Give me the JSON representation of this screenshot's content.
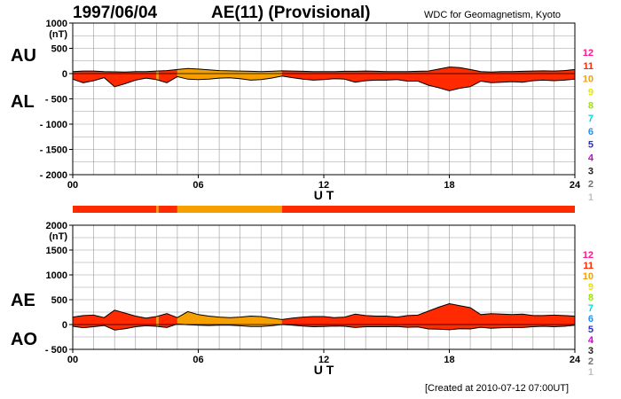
{
  "header": {
    "date": "1997/06/04",
    "title": "AE(11) (Provisional)",
    "org": "WDC for Geomagnetism, Kyoto",
    "created": "[Created at 2010-07-12 07:00UT]"
  },
  "colors": {
    "red": "#ff2a00",
    "orange": "#f5a000",
    "grid": "#999999"
  },
  "chart_data": [
    {
      "type": "area",
      "id": "au-al",
      "ylim": [
        -2000,
        1000
      ],
      "yticks": [
        1000,
        500,
        0,
        -500,
        -1000,
        -1500,
        -2000
      ],
      "ytick_labels": [
        "1000",
        "500",
        "0",
        "- 500",
        "- 1000",
        "- 1500",
        "- 2000"
      ],
      "unit": "(nT)",
      "upper_label": "AU",
      "lower_label": "AL",
      "xlim": [
        0,
        24
      ],
      "xticks": [
        0,
        6,
        12,
        18,
        24
      ],
      "xtick_labels": [
        "00",
        "06",
        "12",
        "18",
        "24"
      ],
      "xlabel": "U T",
      "series": [
        {
          "name": "AU",
          "x": [
            0,
            0.5,
            1,
            1.5,
            2,
            2.5,
            3,
            3.5,
            4,
            4.5,
            5,
            5.5,
            6,
            6.5,
            7,
            7.5,
            8,
            8.5,
            9,
            9.5,
            10,
            10.5,
            11,
            11.5,
            12,
            12.5,
            13,
            13.5,
            14,
            14.5,
            15,
            15.5,
            16,
            16.5,
            17,
            17.5,
            18,
            18.5,
            19,
            19.5,
            20,
            20.5,
            21,
            21.5,
            22,
            22.5,
            23,
            23.5,
            24
          ],
          "values": [
            40,
            50,
            50,
            40,
            35,
            30,
            40,
            40,
            50,
            60,
            80,
            100,
            90,
            75,
            60,
            55,
            50,
            45,
            40,
            45,
            55,
            50,
            45,
            40,
            40,
            40,
            45,
            45,
            50,
            45,
            40,
            40,
            40,
            45,
            50,
            90,
            130,
            120,
            80,
            40,
            30,
            40,
            40,
            45,
            50,
            55,
            50,
            60,
            80
          ]
        },
        {
          "name": "AL",
          "x": [
            0,
            0.5,
            1,
            1.5,
            2,
            2.5,
            3,
            3.5,
            4,
            4.5,
            5,
            5.5,
            6,
            6.5,
            7,
            7.5,
            8,
            8.5,
            9,
            9.5,
            10,
            10.5,
            11,
            11.5,
            12,
            12.5,
            13,
            13.5,
            14,
            14.5,
            15,
            15.5,
            16,
            16.5,
            17,
            17.5,
            18,
            18.5,
            19,
            19.5,
            20,
            20.5,
            21,
            21.5,
            22,
            22.5,
            23,
            23.5,
            24
          ],
          "values": [
            -110,
            -180,
            -140,
            -80,
            -260,
            -200,
            -130,
            -90,
            -120,
            -180,
            -60,
            -110,
            -120,
            -110,
            -90,
            -85,
            -100,
            -130,
            -120,
            -90,
            -50,
            -80,
            -110,
            -130,
            -120,
            -100,
            -110,
            -170,
            -140,
            -130,
            -130,
            -120,
            -150,
            -150,
            -230,
            -280,
            -340,
            -290,
            -260,
            -150,
            -180,
            -170,
            -160,
            -170,
            -140,
            -130,
            -140,
            -130,
            -110
          ]
        }
      ]
    },
    {
      "type": "area",
      "id": "ae-ao",
      "ylim": [
        -500,
        2000
      ],
      "yticks": [
        2000,
        1500,
        1000,
        500,
        0,
        -500
      ],
      "ytick_labels": [
        "2000",
        "1500",
        "1000",
        "500",
        "0",
        "- 500"
      ],
      "unit": "(nT)",
      "upper_label": "AE",
      "lower_label": "AO",
      "xlim": [
        0,
        24
      ],
      "xticks": [
        0,
        6,
        12,
        18,
        24
      ],
      "xtick_labels": [
        "00",
        "06",
        "12",
        "18",
        "24"
      ],
      "xlabel": "U T",
      "series": [
        {
          "name": "AE",
          "x": [
            0,
            0.5,
            1,
            1.5,
            2,
            2.5,
            3,
            3.5,
            4,
            4.5,
            5,
            5.5,
            6,
            6.5,
            7,
            7.5,
            8,
            8.5,
            9,
            9.5,
            10,
            10.5,
            11,
            11.5,
            12,
            12.5,
            13,
            13.5,
            14,
            14.5,
            15,
            15.5,
            16,
            16.5,
            17,
            17.5,
            18,
            18.5,
            19,
            19.5,
            20,
            20.5,
            21,
            21.5,
            22,
            22.5,
            23,
            23.5,
            24
          ],
          "values": [
            150,
            180,
            190,
            140,
            290,
            230,
            170,
            130,
            160,
            220,
            140,
            260,
            200,
            170,
            150,
            140,
            150,
            170,
            160,
            130,
            100,
            130,
            150,
            160,
            160,
            140,
            150,
            210,
            180,
            170,
            170,
            150,
            180,
            190,
            270,
            350,
            420,
            380,
            340,
            200,
            220,
            210,
            200,
            210,
            180,
            180,
            190,
            180,
            170
          ]
        },
        {
          "name": "AO",
          "x": [
            0,
            0.5,
            1,
            1.5,
            2,
            2.5,
            3,
            3.5,
            4,
            4.5,
            5,
            5.5,
            6,
            6.5,
            7,
            7.5,
            8,
            8.5,
            9,
            9.5,
            10,
            10.5,
            11,
            11.5,
            12,
            12.5,
            13,
            13.5,
            14,
            14.5,
            15,
            15.5,
            16,
            16.5,
            17,
            17.5,
            18,
            18.5,
            19,
            19.5,
            20,
            20.5,
            21,
            21.5,
            22,
            22.5,
            23,
            23.5,
            24
          ],
          "values": [
            -35,
            -65,
            -45,
            -20,
            -110,
            -85,
            -45,
            -25,
            -35,
            -60,
            10,
            -5,
            -15,
            -20,
            -15,
            -15,
            -25,
            -40,
            -40,
            -25,
            0,
            -15,
            -30,
            -45,
            -40,
            -30,
            -35,
            -60,
            -45,
            -45,
            -45,
            -40,
            -55,
            -50,
            -90,
            -95,
            -105,
            -85,
            -90,
            -55,
            -75,
            -65,
            -60,
            -60,
            -45,
            -35,
            -45,
            -35,
            -15
          ]
        }
      ]
    }
  ],
  "station_count": {
    "note_legend": [
      "12",
      "11",
      "10",
      "9",
      "8",
      "7",
      "6",
      "5",
      "4",
      "3",
      "2",
      "1"
    ],
    "legend_colors": [
      "#ff1493",
      "#ff2a00",
      "#f5a000",
      "#e6e600",
      "#99e600",
      "#00d9d9",
      "#1e90ff",
      "#3030c0",
      "#d000d0",
      "#202020",
      "#707070",
      "#c0c0c0"
    ],
    "segments": [
      {
        "start": 0,
        "end": 4.0,
        "count": 11
      },
      {
        "start": 4.0,
        "end": 4.1,
        "count": 10
      },
      {
        "start": 4.1,
        "end": 5.0,
        "count": 11
      },
      {
        "start": 5.0,
        "end": 10.0,
        "count": 10
      },
      {
        "start": 10.0,
        "end": 24,
        "count": 11
      }
    ]
  }
}
